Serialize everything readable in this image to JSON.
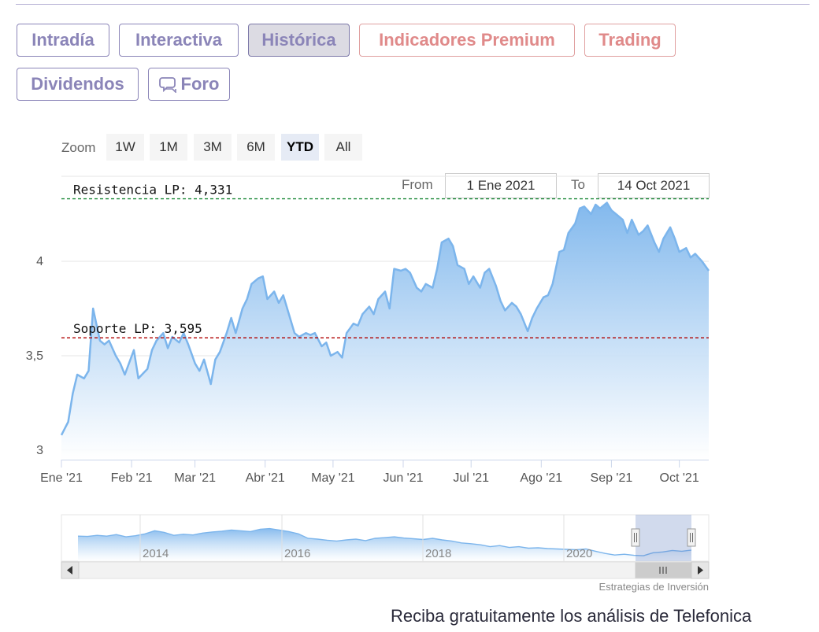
{
  "tabs": [
    {
      "label": "Intradía",
      "style": "normal"
    },
    {
      "label": "Interactiva",
      "style": "normal"
    },
    {
      "label": "Histórica",
      "style": "active"
    },
    {
      "label": "Indicadores Premium",
      "style": "premium"
    },
    {
      "label": "Trading",
      "style": "premium"
    },
    {
      "label": "Dividendos",
      "style": "normal"
    },
    {
      "label": "Foro",
      "style": "normal",
      "icon": "chat-bubble-icon"
    }
  ],
  "zoom": {
    "label": "Zoom",
    "buttons": [
      "1W",
      "1M",
      "3M",
      "6M",
      "YTD",
      "All"
    ],
    "selected": "YTD"
  },
  "range": {
    "from_label": "From",
    "from_value": "1 Ene 2021",
    "to_label": "To",
    "to_value": "14 Oct 2021"
  },
  "chart_data": {
    "type": "area",
    "title": "",
    "xlabel": "",
    "ylabel": "",
    "x_tick_labels": [
      "Ene '21",
      "Feb '21",
      "Mar '21",
      "Abr '21",
      "May '21",
      "Jun '21",
      "Jul '21",
      "Ago '21",
      "Sep '21",
      "Oct '21"
    ],
    "y_tick_labels": [
      "3",
      "3,5",
      "4"
    ],
    "ylim": [
      2.95,
      4.45
    ],
    "xlim": [
      "2021-01-01",
      "2021-10-14"
    ],
    "grid": "horizontal",
    "series": [
      {
        "values": [
          [
            "2021-01-01",
            3.08
          ],
          [
            "2021-01-04",
            3.15
          ],
          [
            "2021-01-06",
            3.3
          ],
          [
            "2021-01-08",
            3.4
          ],
          [
            "2021-01-11",
            3.38
          ],
          [
            "2021-01-13",
            3.42
          ],
          [
            "2021-01-15",
            3.75
          ],
          [
            "2021-01-18",
            3.58
          ],
          [
            "2021-01-20",
            3.56
          ],
          [
            "2021-01-22",
            3.58
          ],
          [
            "2021-01-25",
            3.5
          ],
          [
            "2021-01-27",
            3.46
          ],
          [
            "2021-01-29",
            3.4
          ],
          [
            "2021-02-02",
            3.53
          ],
          [
            "2021-02-04",
            3.38
          ],
          [
            "2021-02-08",
            3.43
          ],
          [
            "2021-02-10",
            3.53
          ],
          [
            "2021-02-12",
            3.58
          ],
          [
            "2021-02-15",
            3.62
          ],
          [
            "2021-02-17",
            3.54
          ],
          [
            "2021-02-19",
            3.6
          ],
          [
            "2021-02-22",
            3.57
          ],
          [
            "2021-02-24",
            3.62
          ],
          [
            "2021-02-26",
            3.56
          ],
          [
            "2021-03-01",
            3.46
          ],
          [
            "2021-03-03",
            3.42
          ],
          [
            "2021-03-05",
            3.48
          ],
          [
            "2021-03-08",
            3.35
          ],
          [
            "2021-03-10",
            3.48
          ],
          [
            "2021-03-12",
            3.52
          ],
          [
            "2021-03-15",
            3.62
          ],
          [
            "2021-03-17",
            3.7
          ],
          [
            "2021-03-19",
            3.62
          ],
          [
            "2021-03-22",
            3.75
          ],
          [
            "2021-03-24",
            3.8
          ],
          [
            "2021-03-26",
            3.88
          ],
          [
            "2021-03-29",
            3.91
          ],
          [
            "2021-03-31",
            3.92
          ],
          [
            "2021-04-02",
            3.8
          ],
          [
            "2021-04-05",
            3.84
          ],
          [
            "2021-04-07",
            3.78
          ],
          [
            "2021-04-09",
            3.82
          ],
          [
            "2021-04-12",
            3.7
          ],
          [
            "2021-04-14",
            3.62
          ],
          [
            "2021-04-16",
            3.6
          ],
          [
            "2021-04-19",
            3.62
          ],
          [
            "2021-04-21",
            3.61
          ],
          [
            "2021-04-23",
            3.62
          ],
          [
            "2021-04-26",
            3.55
          ],
          [
            "2021-04-28",
            3.57
          ],
          [
            "2021-04-30",
            3.5
          ],
          [
            "2021-05-03",
            3.52
          ],
          [
            "2021-05-05",
            3.49
          ],
          [
            "2021-05-07",
            3.62
          ],
          [
            "2021-05-10",
            3.67
          ],
          [
            "2021-05-12",
            3.66
          ],
          [
            "2021-05-14",
            3.72
          ],
          [
            "2021-05-17",
            3.76
          ],
          [
            "2021-05-19",
            3.72
          ],
          [
            "2021-05-21",
            3.8
          ],
          [
            "2021-05-24",
            3.84
          ],
          [
            "2021-05-26",
            3.75
          ],
          [
            "2021-05-28",
            3.96
          ],
          [
            "2021-05-31",
            3.95
          ],
          [
            "2021-06-02",
            3.96
          ],
          [
            "2021-06-04",
            3.94
          ],
          [
            "2021-06-07",
            3.86
          ],
          [
            "2021-06-09",
            3.84
          ],
          [
            "2021-06-11",
            3.88
          ],
          [
            "2021-06-14",
            3.86
          ],
          [
            "2021-06-16",
            3.96
          ],
          [
            "2021-06-18",
            4.1
          ],
          [
            "2021-06-21",
            4.12
          ],
          [
            "2021-06-23",
            4.08
          ],
          [
            "2021-06-25",
            3.98
          ],
          [
            "2021-06-28",
            3.96
          ],
          [
            "2021-06-30",
            3.88
          ],
          [
            "2021-07-02",
            3.92
          ],
          [
            "2021-07-05",
            3.86
          ],
          [
            "2021-07-07",
            3.94
          ],
          [
            "2021-07-09",
            3.96
          ],
          [
            "2021-07-12",
            3.87
          ],
          [
            "2021-07-14",
            3.79
          ],
          [
            "2021-07-16",
            3.74
          ],
          [
            "2021-07-19",
            3.78
          ],
          [
            "2021-07-21",
            3.76
          ],
          [
            "2021-07-23",
            3.72
          ],
          [
            "2021-07-26",
            3.63
          ],
          [
            "2021-07-28",
            3.7
          ],
          [
            "2021-07-30",
            3.75
          ],
          [
            "2021-08-02",
            3.81
          ],
          [
            "2021-08-04",
            3.82
          ],
          [
            "2021-08-06",
            3.88
          ],
          [
            "2021-08-09",
            4.05
          ],
          [
            "2021-08-11",
            4.06
          ],
          [
            "2021-08-13",
            4.15
          ],
          [
            "2021-08-16",
            4.2
          ],
          [
            "2021-08-18",
            4.28
          ],
          [
            "2021-08-20",
            4.29
          ],
          [
            "2021-08-23",
            4.25
          ],
          [
            "2021-08-25",
            4.3
          ],
          [
            "2021-08-27",
            4.28
          ],
          [
            "2021-08-30",
            4.31
          ],
          [
            "2021-09-01",
            4.27
          ],
          [
            "2021-09-03",
            4.25
          ],
          [
            "2021-09-06",
            4.22
          ],
          [
            "2021-09-08",
            4.15
          ],
          [
            "2021-09-10",
            4.22
          ],
          [
            "2021-09-13",
            4.14
          ],
          [
            "2021-09-15",
            4.16
          ],
          [
            "2021-09-17",
            4.19
          ],
          [
            "2021-09-20",
            4.1
          ],
          [
            "2021-09-22",
            4.05
          ],
          [
            "2021-09-24",
            4.12
          ],
          [
            "2021-09-27",
            4.18
          ],
          [
            "2021-09-29",
            4.12
          ],
          [
            "2021-10-01",
            4.05
          ],
          [
            "2021-10-04",
            4.07
          ],
          [
            "2021-10-06",
            4.02
          ],
          [
            "2021-10-08",
            4.04
          ],
          [
            "2021-10-11",
            4.0
          ],
          [
            "2021-10-14",
            3.95
          ]
        ]
      }
    ],
    "plot_lines": [
      {
        "label": "Resistencia LP: 4,331",
        "value": 4.331,
        "color": "#1f8a3a"
      },
      {
        "label": "Soporte LP: 3,595",
        "value": 3.595,
        "color": "#b00000"
      }
    ],
    "colors": {
      "line": "#7cb5ec",
      "fill_top": "#7cb5ec",
      "fill_bottom": "#ffffff",
      "grid": "#e6e6e6",
      "axis": "#ccd6eb"
    }
  },
  "navigator": {
    "year_labels": [
      "2014",
      "2016",
      "2018",
      "2020"
    ],
    "values": [
      0.58,
      0.57,
      0.6,
      0.58,
      0.62,
      0.56,
      0.59,
      0.64,
      0.72,
      0.68,
      0.6,
      0.63,
      0.61,
      0.66,
      0.69,
      0.71,
      0.74,
      0.72,
      0.7,
      0.76,
      0.78,
      0.74,
      0.7,
      0.64,
      0.52,
      0.5,
      0.47,
      0.45,
      0.48,
      0.5,
      0.46,
      0.52,
      0.54,
      0.56,
      0.53,
      0.51,
      0.49,
      0.52,
      0.48,
      0.45,
      0.4,
      0.38,
      0.35,
      0.3,
      0.33,
      0.28,
      0.3,
      0.26,
      0.27,
      0.25,
      0.24,
      0.23,
      0.22,
      0.24,
      0.18,
      0.12,
      0.08,
      0.1,
      0.07,
      0.06,
      0.14,
      0.16,
      0.2,
      0.18,
      0.21
    ]
  },
  "credits": "Estrategias de Inversión",
  "footer": "Reciba gratuitamente los análisis de Telefonica"
}
